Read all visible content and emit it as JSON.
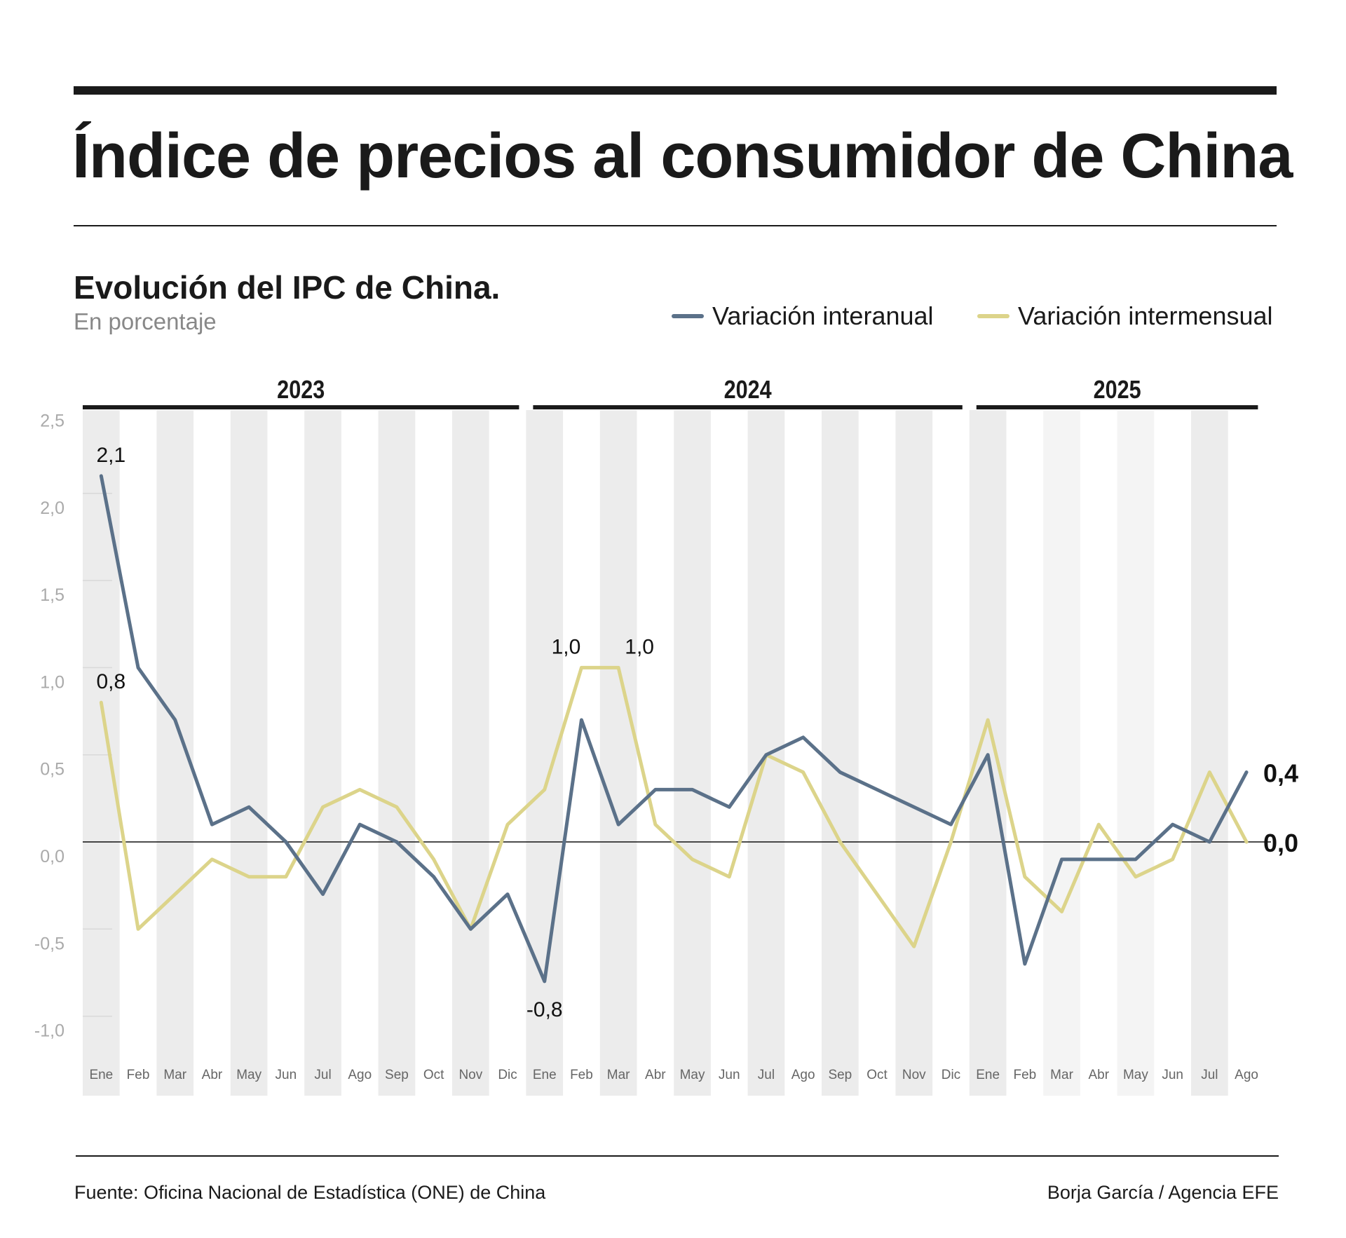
{
  "header": {
    "title": "Índice de precios al consumidor de China",
    "subtitle": "Evolución del IPC de China.",
    "unit": "En porcentaje"
  },
  "footer": {
    "source": "Fuente: Oficina Nacional de Estadística (ONE) de China",
    "credit": "Borja García / Agencia EFE"
  },
  "chart_data": {
    "type": "line",
    "title": "Evolución del IPC de China.",
    "ylabel": "En porcentaje",
    "ylim": [
      -1.0,
      2.5
    ],
    "yticks": [
      2.5,
      2.0,
      1.5,
      1.0,
      0.5,
      0.0,
      -0.5,
      -1.0
    ],
    "ytick_labels": [
      "2,5",
      "2,0",
      "1,5",
      "1,0",
      "0,5",
      "0,0",
      "-0,5",
      "-1,0"
    ],
    "legend_placement": "top-right",
    "years": [
      {
        "label": "2023",
        "months": 12
      },
      {
        "label": "2024",
        "months": 12
      },
      {
        "label": "2025",
        "months": 8
      }
    ],
    "categories": [
      "Ene",
      "Feb",
      "Mar",
      "Abr",
      "May",
      "Jun",
      "Jul",
      "Ago",
      "Sep",
      "Oct",
      "Nov",
      "Dic",
      "Ene",
      "Feb",
      "Mar",
      "Abr",
      "May",
      "Jun",
      "Jul",
      "Ago",
      "Sep",
      "Oct",
      "Nov",
      "Dic",
      "Ene",
      "Feb",
      "Mar",
      "Abr",
      "May",
      "Jun",
      "Jul",
      "Ago"
    ],
    "series": [
      {
        "name": "Variación interanual",
        "color": "#5b7189",
        "values": [
          2.1,
          1.0,
          0.7,
          0.1,
          0.2,
          0.0,
          -0.3,
          0.1,
          0.0,
          -0.2,
          -0.5,
          -0.3,
          -0.8,
          0.7,
          0.1,
          0.3,
          0.3,
          0.2,
          0.5,
          0.6,
          0.4,
          0.3,
          0.2,
          0.1,
          0.5,
          -0.7,
          -0.1,
          -0.1,
          -0.1,
          0.1,
          0.0,
          0.4
        ]
      },
      {
        "name": "Variación intermensual",
        "color": "#dcd48a",
        "values": [
          0.8,
          -0.5,
          -0.3,
          -0.1,
          -0.2,
          -0.2,
          0.2,
          0.3,
          0.2,
          -0.1,
          -0.5,
          0.1,
          0.3,
          1.0,
          1.0,
          0.1,
          -0.1,
          -0.2,
          0.5,
          0.4,
          0.0,
          -0.3,
          -0.6,
          0.0,
          0.7,
          -0.2,
          -0.4,
          0.1,
          -0.2,
          -0.1,
          0.4,
          0.0
        ]
      }
    ],
    "annotations": [
      {
        "series": 0,
        "index": 0,
        "text": "2,1"
      },
      {
        "series": 1,
        "index": 0,
        "text": "0,8"
      },
      {
        "series": 1,
        "index": 13,
        "text": "1,0"
      },
      {
        "series": 1,
        "index": 14,
        "text": "1,0"
      },
      {
        "series": 0,
        "index": 12,
        "text": "-0,8"
      },
      {
        "series": 0,
        "index": 31,
        "text": "0,4",
        "bold": true
      },
      {
        "series": 1,
        "index": 31,
        "text": "0,0",
        "bold": true
      }
    ],
    "grid": false,
    "zero_line": true
  }
}
